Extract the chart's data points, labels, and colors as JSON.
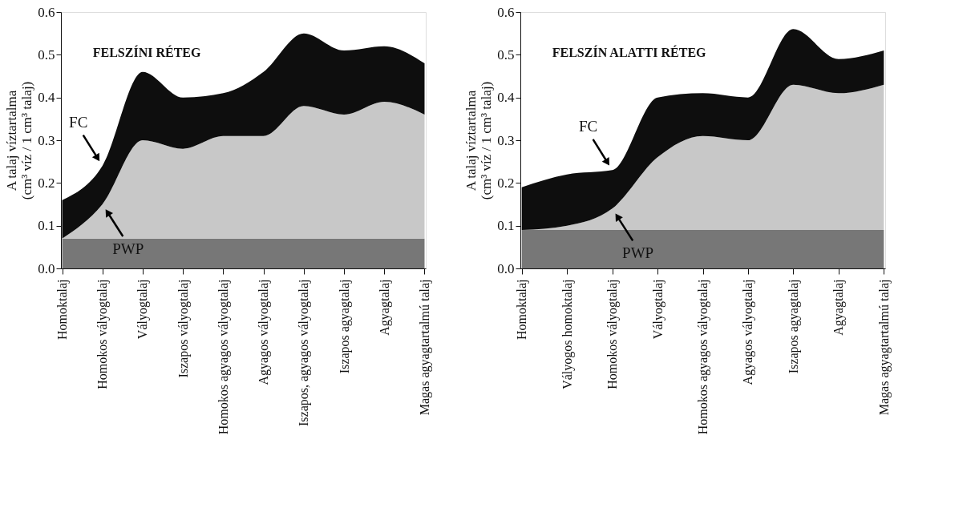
{
  "chart_data": [
    {
      "type": "area",
      "stacked": true,
      "title": "FELSZÍNI RÉTEG",
      "ylabel": "A talaj víztartalma\n(cm³ víz / 1 cm³ talaj)",
      "categories": [
        "Homoktalaj",
        "Homokos vályogtalaj",
        "Vályogtalaj",
        "Iszapos vályogtalaj",
        "Homokos agyagos vályogtalaj",
        "Agyagos vályogtalaj",
        "Iszapos, agyagos vályogtalaj",
        "Iszapos agyagtalaj",
        "Agyagtalaj",
        "Magas agyagtartalmú talaj"
      ],
      "series": [
        {
          "color": "#777777",
          "values": [
            0.07,
            0.07,
            0.07,
            0.07,
            0.07,
            0.07,
            0.07,
            0.07,
            0.07,
            0.07
          ]
        },
        {
          "color": "#c8c8c8",
          "values": [
            0.0,
            0.08,
            0.23,
            0.21,
            0.24,
            0.24,
            0.31,
            0.29,
            0.32,
            0.29
          ]
        },
        {
          "color": "#0e0e0e",
          "values": [
            0.09,
            0.09,
            0.16,
            0.12,
            0.1,
            0.15,
            0.17,
            0.15,
            0.13,
            0.12
          ]
        }
      ],
      "annotations": [
        {
          "text": "FC",
          "x": "Homokos vályogtalaj",
          "y": 0.24
        },
        {
          "text": "PWP",
          "x": "Homokos vályogtalaj",
          "y": 0.15
        }
      ],
      "ylim": [
        0,
        0.6
      ],
      "yticks": [
        {
          "value": 0,
          "label": "0.0"
        },
        0.1,
        0.2,
        0.3,
        0.4,
        0.5,
        0.6
      ],
      "grid": false,
      "legend": false
    },
    {
      "type": "area",
      "stacked": true,
      "title": "FELSZÍN ALATTI RÉTEG",
      "ylabel": "A talaj víztartalma\n(cm³ víz / 1 cm³ talaj)",
      "categories": [
        "Homoktalaj",
        "Vályogos homoktalaj",
        "Homokos vályogtalaj",
        "Vályogtalaj",
        "Homokos agyagos vályogtalaj",
        "Agyagos vályogtalaj",
        "Iszapos agyagtalaj",
        "Agyagtalaj",
        "Magas agyagtartalmú talaj"
      ],
      "series": [
        {
          "color": "#777777",
          "values": [
            0.09,
            0.09,
            0.09,
            0.09,
            0.09,
            0.09,
            0.09,
            0.09,
            0.09
          ]
        },
        {
          "color": "#c8c8c8",
          "values": [
            0.0,
            0.01,
            0.05,
            0.17,
            0.22,
            0.21,
            0.34,
            0.32,
            0.34
          ]
        },
        {
          "color": "#0e0e0e",
          "values": [
            0.1,
            0.12,
            0.09,
            0.14,
            0.1,
            0.1,
            0.13,
            0.08,
            0.08
          ]
        }
      ],
      "annotations": [
        {
          "text": "FC",
          "x": "Homokos vályogtalaj",
          "y": 0.23
        },
        {
          "text": "PWP",
          "x": "Homokos vályogtalaj",
          "y": 0.14
        }
      ],
      "ylim": [
        0,
        0.6
      ],
      "yticks": [
        {
          "value": 0,
          "label": "0.0"
        },
        0.1,
        0.2,
        0.3,
        0.4,
        0.5,
        0.6
      ],
      "grid": false,
      "legend": false
    }
  ]
}
